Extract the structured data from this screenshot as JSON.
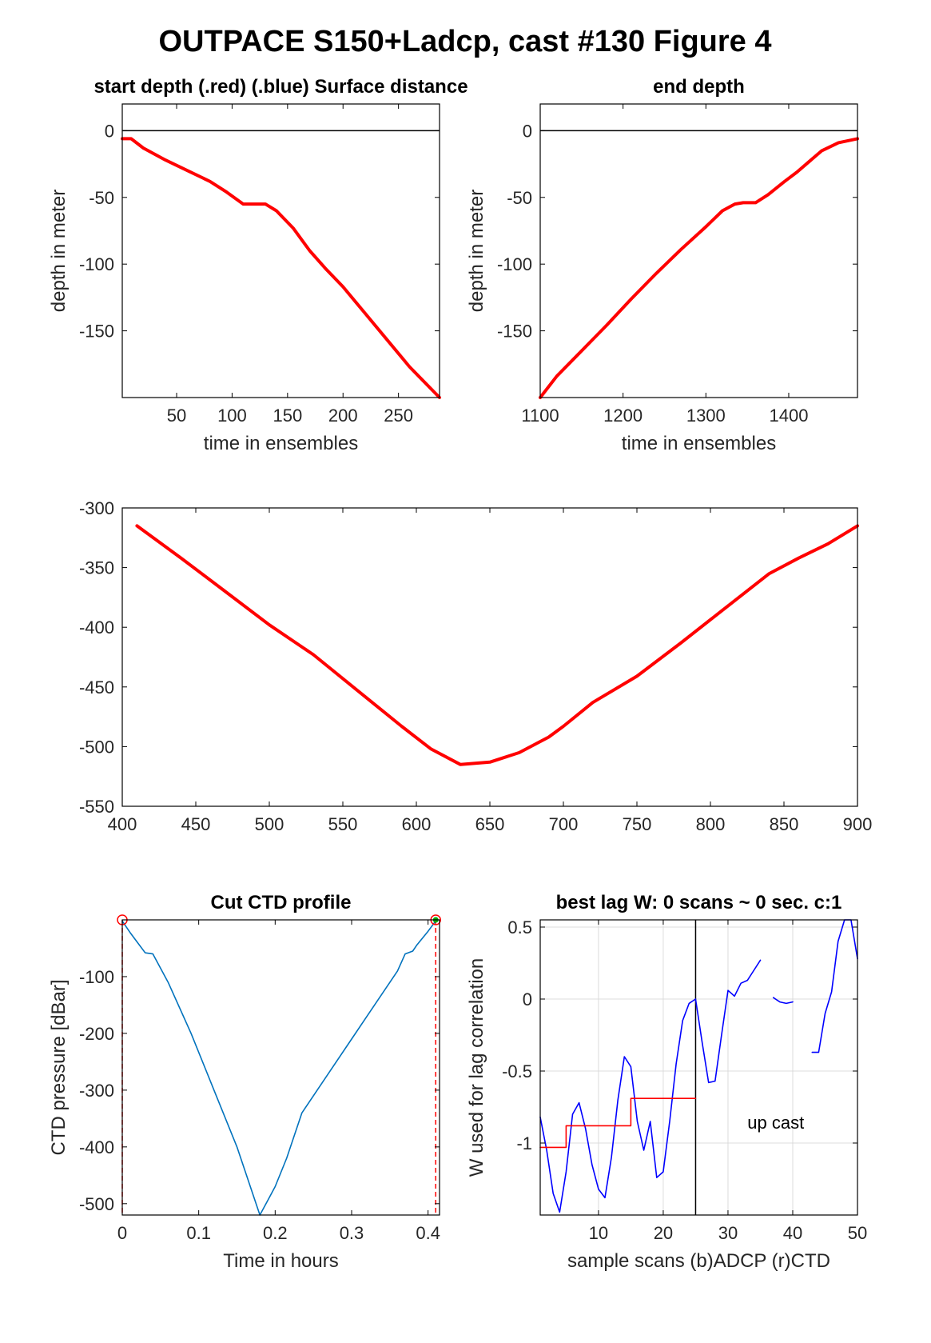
{
  "figure_title": "OUTPACE S150+Ladcp, cast #130    Figure 4",
  "colors": {
    "red": "#ff0000",
    "blue": "#0000ff",
    "ctd": "#0072bd",
    "green": "#00aa00",
    "grid": "#dcdcdc",
    "axis": "#000000"
  },
  "chart_data": [
    {
      "id": "start_depth",
      "type": "line",
      "title": "start depth (.red) (.blue) Surface distance",
      "xlabel": "time in ensembles",
      "ylabel": "depth in meter",
      "xlim": [
        1,
        287
      ],
      "ylim": [
        -200,
        20
      ],
      "xticks": [
        50,
        100,
        150,
        200,
        250
      ],
      "yticks": [
        0,
        -50,
        -100,
        -150
      ],
      "grid": false,
      "hline": 0,
      "series": [
        {
          "color": "#ff0000",
          "x": [
            1,
            9,
            20,
            40,
            60,
            80,
            95,
            110,
            130,
            140,
            155,
            170,
            185,
            200,
            220,
            240,
            260,
            287
          ],
          "y": [
            -6,
            -6,
            -13,
            -22,
            -30,
            -38,
            -46,
            -55,
            -55,
            -60,
            -73,
            -90,
            -104,
            -117,
            -137,
            -157,
            -177,
            -200
          ]
        }
      ]
    },
    {
      "id": "end_depth",
      "type": "line",
      "title": "end depth",
      "xlabel": "time in ensembles",
      "ylabel": "depth in meter",
      "xlim": [
        1100,
        1483
      ],
      "ylim": [
        -200,
        20
      ],
      "xticks": [
        1100,
        1200,
        1300,
        1400
      ],
      "yticks": [
        0,
        -50,
        -100,
        -150
      ],
      "grid": false,
      "hline": 0,
      "series": [
        {
          "color": "#ff0000",
          "x": [
            1100,
            1120,
            1150,
            1180,
            1210,
            1240,
            1270,
            1300,
            1320,
            1335,
            1345,
            1360,
            1375,
            1395,
            1410,
            1425,
            1440,
            1460,
            1483
          ],
          "y": [
            -200,
            -184,
            -165,
            -146,
            -126,
            -107,
            -89,
            -72,
            -60,
            -55,
            -54,
            -54,
            -48,
            -38,
            -31,
            -23,
            -15,
            -9,
            -6
          ]
        }
      ]
    },
    {
      "id": "middle_depth",
      "type": "line",
      "title": "",
      "xlabel": "",
      "ylabel": "",
      "xlim": [
        400,
        900
      ],
      "ylim": [
        -550,
        -300
      ],
      "xticks": [
        400,
        450,
        500,
        550,
        600,
        650,
        700,
        750,
        800,
        850,
        900
      ],
      "yticks": [
        -300,
        -350,
        -400,
        -450,
        -500,
        -550
      ],
      "grid": false,
      "series": [
        {
          "color": "#ff0000",
          "x": [
            410,
            440,
            470,
            500,
            530,
            560,
            590,
            610,
            630,
            650,
            670,
            690,
            700,
            720,
            750,
            780,
            810,
            840,
            860,
            880,
            900
          ],
          "y": [
            -315,
            -342,
            -370,
            -398,
            -423,
            -453,
            -483,
            -502,
            -515,
            -513,
            -505,
            -492,
            -483,
            -463,
            -441,
            -413,
            -384,
            -355,
            -342,
            -330,
            -315
          ]
        }
      ]
    },
    {
      "id": "cut_ctd",
      "type": "line",
      "title": "Cut CTD profile",
      "xlabel": "Time in hours",
      "ylabel": "CTD pressure [dBar]",
      "xlim": [
        0,
        0.415
      ],
      "ylim": [
        -520,
        0
      ],
      "xticks": [
        0,
        0.1,
        0.2,
        0.3,
        0.4
      ],
      "xticklabels": [
        "0",
        "0.1",
        "0.2",
        "0.3",
        "0.4"
      ],
      "yticks": [
        -100,
        -200,
        -300,
        -400,
        -500
      ],
      "grid": false,
      "series": [
        {
          "color": "#0072bd",
          "x": [
            0,
            0.01,
            0.02,
            0.03,
            0.04,
            0.06,
            0.09,
            0.12,
            0.15,
            0.175,
            0.18,
            0.19,
            0.2,
            0.215,
            0.235,
            0.27,
            0.3,
            0.33,
            0.36,
            0.37,
            0.38,
            0.385,
            0.4,
            0.41
          ],
          "y": [
            -2,
            -22,
            -40,
            -58,
            -60,
            -110,
            -200,
            -300,
            -400,
            -500,
            -520,
            -495,
            -470,
            -420,
            -340,
            -270,
            -210,
            -150,
            -90,
            -60,
            -55,
            -45,
            -20,
            -2
          ]
        }
      ],
      "markers": [
        {
          "shape": "circle",
          "color": "#ff0000",
          "x": 0,
          "y": 0
        },
        {
          "shape": "circle",
          "color": "#ff0000",
          "x": 0.41,
          "y": 0
        },
        {
          "shape": "dot",
          "color": "#00aa00",
          "x": 0.41,
          "y": 0
        }
      ],
      "vlines": [
        {
          "x": 0,
          "color": "#ff0000",
          "style": "dashed"
        },
        {
          "x": 0.41,
          "color": "#ff0000",
          "style": "dashed"
        }
      ]
    },
    {
      "id": "best_lag",
      "type": "line",
      "title": "best lag W: 0 scans ~ 0 sec.  c:1",
      "xlabel": "sample scans (b)ADCP (r)CTD",
      "ylabel": "W used for lag correlation",
      "xlim": [
        1,
        50
      ],
      "ylim": [
        -1.5,
        0.55
      ],
      "xticks": [
        10,
        20,
        30,
        40,
        50
      ],
      "yticks": [
        0.5,
        0,
        -0.5,
        -1
      ],
      "grid": true,
      "annotation": "up cast",
      "annotation_at": [
        33,
        -0.9
      ],
      "vline": 25,
      "series": [
        {
          "color": "#0000ff",
          "segments": [
            {
              "x": [
                1,
                2,
                3,
                4,
                5,
                6,
                7,
                8,
                9,
                10,
                11,
                12,
                13,
                14,
                15,
                16,
                17,
                18,
                19,
                20,
                21,
                22,
                23,
                24,
                25,
                26,
                27,
                28,
                29,
                30,
                31,
                32,
                33,
                34,
                35
              ],
              "y": [
                -0.82,
                -1.05,
                -1.35,
                -1.48,
                -1.2,
                -0.8,
                -0.72,
                -0.9,
                -1.15,
                -1.32,
                -1.38,
                -1.1,
                -0.7,
                -0.4,
                -0.47,
                -0.85,
                -1.05,
                -0.85,
                -1.24,
                -1.2,
                -0.85,
                -0.45,
                -0.15,
                -0.03,
                0.0,
                -0.3,
                -0.58,
                -0.57,
                -0.25,
                0.06,
                0.02,
                0.11,
                0.13,
                0.2,
                0.27
              ]
            },
            {
              "x": [
                37,
                38,
                39,
                40
              ],
              "y": [
                0.01,
                -0.02,
                -0.03,
                -0.02
              ]
            },
            {
              "x": [
                43,
                44,
                45,
                46,
                47,
                48,
                49,
                50
              ],
              "y": [
                -0.37,
                -0.37,
                -0.1,
                0.05,
                0.4,
                0.55,
                0.55,
                0.28
              ]
            }
          ]
        },
        {
          "color": "#ff0000",
          "step": true,
          "x": [
            1,
            5,
            5,
            15,
            15,
            25
          ],
          "y": [
            -1.03,
            -1.03,
            -0.88,
            -0.88,
            -0.69,
            -0.69
          ]
        }
      ]
    }
  ]
}
